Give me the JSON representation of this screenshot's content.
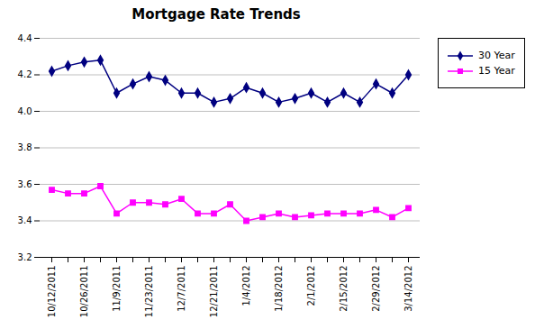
{
  "chart_data": {
    "type": "line",
    "title": "Mortgage Rate Trends",
    "categories": [
      "10/12/2011",
      null,
      "10/26/2011",
      null,
      "11/9/2011",
      null,
      "11/23/2011",
      null,
      "12/7/2011",
      null,
      "12/21/2011",
      null,
      "1/4/2012",
      null,
      "1/18/2012",
      null,
      "2/1/2012",
      null,
      "2/15/2012",
      null,
      "2/29/2012",
      null,
      "3/14/2012"
    ],
    "series": [
      {
        "name": "30 Year",
        "color": "#000080",
        "marker": "diamond",
        "values": [
          4.22,
          4.25,
          4.27,
          4.28,
          4.1,
          4.15,
          4.19,
          4.17,
          4.1,
          4.1,
          4.05,
          4.07,
          4.13,
          4.1,
          4.05,
          4.07,
          4.1,
          4.05,
          4.1,
          4.05,
          4.15,
          4.1,
          4.2
        ]
      },
      {
        "name": "15 Year",
        "color": "#FF00FF",
        "marker": "square",
        "values": [
          3.57,
          3.55,
          3.55,
          3.59,
          3.44,
          3.5,
          3.5,
          3.49,
          3.52,
          3.44,
          3.44,
          3.49,
          3.4,
          3.42,
          3.44,
          3.42,
          3.43,
          3.44,
          3.44,
          3.44,
          3.46,
          3.42,
          3.47
        ]
      }
    ],
    "ylim": [
      3.2,
      4.4
    ],
    "yticks": [
      3.2,
      3.4,
      3.6,
      3.8,
      {
        "value": 4.0,
        "label": "4.0"
      },
      4.2,
      4.4
    ],
    "grid": true,
    "legend": "right"
  }
}
